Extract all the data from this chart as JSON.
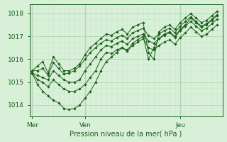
{
  "bg_color": "#d8f0d8",
  "grid_color_major": "#b8d8b8",
  "grid_color_minor": "#c8e8c8",
  "line_color": "#1a5e1a",
  "marker_color": "#1a5e1a",
  "ylabel_ticks": [
    1014,
    1015,
    1016,
    1017,
    1018
  ],
  "xlabel": "Pression niveau de la mer( hPa )",
  "day_labels": [
    "Mer",
    "Ven",
    "Jeu"
  ],
  "day_positions": [
    0,
    10,
    28
  ],
  "xlim": [
    -0.5,
    36
  ],
  "ylim": [
    1013.5,
    1018.4
  ],
  "series": [
    [
      1015.5,
      1015.7,
      1015.9,
      1015.4,
      1016.1,
      1015.8,
      1015.5,
      1015.5,
      1015.6,
      1015.8,
      1016.2,
      1016.5,
      1016.7,
      1016.9,
      1017.1,
      1017.05,
      1017.2,
      1017.3,
      1017.1,
      1017.4,
      1017.5,
      1017.6,
      1016.3,
      1016.0,
      1017.2,
      1017.4,
      1017.5,
      1017.3,
      1017.6,
      1017.8,
      1018.0,
      1017.8,
      1017.6,
      1017.7,
      1017.9,
      1018.1
    ],
    [
      1015.5,
      1015.5,
      1015.6,
      1015.3,
      1015.85,
      1015.6,
      1015.35,
      1015.4,
      1015.5,
      1015.7,
      1016.0,
      1016.3,
      1016.5,
      1016.7,
      1016.85,
      1016.8,
      1016.95,
      1017.05,
      1016.9,
      1017.15,
      1017.25,
      1017.35,
      1017.05,
      1016.9,
      1017.1,
      1017.25,
      1017.35,
      1017.15,
      1017.45,
      1017.65,
      1017.85,
      1017.65,
      1017.45,
      1017.55,
      1017.75,
      1017.95
    ],
    [
      1015.4,
      1015.3,
      1015.2,
      1015.1,
      1015.5,
      1015.3,
      1015.1,
      1015.0,
      1015.0,
      1015.1,
      1015.5,
      1015.8,
      1016.1,
      1016.4,
      1016.6,
      1016.55,
      1016.7,
      1016.8,
      1016.65,
      1016.9,
      1017.0,
      1017.1,
      1016.8,
      1016.7,
      1016.9,
      1017.05,
      1017.15,
      1016.95,
      1017.25,
      1017.45,
      1017.65,
      1017.45,
      1017.25,
      1017.35,
      1017.55,
      1017.75
    ],
    [
      1015.4,
      1014.9,
      1014.6,
      1014.4,
      1014.2,
      1014.1,
      1013.85,
      1013.8,
      1013.85,
      1014.0,
      1014.3,
      1014.6,
      1015.0,
      1015.5,
      1015.9,
      1016.1,
      1016.3,
      1016.5,
      1016.4,
      1016.7,
      1016.85,
      1017.0,
      1016.0,
      1016.5,
      1016.9,
      1017.1,
      1017.2,
      1017.0,
      1017.3,
      1017.5,
      1017.8,
      1017.6,
      1017.4,
      1017.5,
      1017.7,
      1017.9
    ],
    [
      1015.4,
      1015.1,
      1015.0,
      1014.8,
      1015.1,
      1014.9,
      1014.7,
      1014.6,
      1014.6,
      1014.7,
      1014.9,
      1015.2,
      1015.5,
      1016.0,
      1016.3,
      1016.25,
      1016.4,
      1016.5,
      1016.35,
      1016.6,
      1016.75,
      1016.9,
      1016.5,
      1016.4,
      1016.6,
      1016.75,
      1016.85,
      1016.65,
      1016.95,
      1017.15,
      1017.4,
      1017.2,
      1017.0,
      1017.1,
      1017.3,
      1017.5
    ]
  ]
}
